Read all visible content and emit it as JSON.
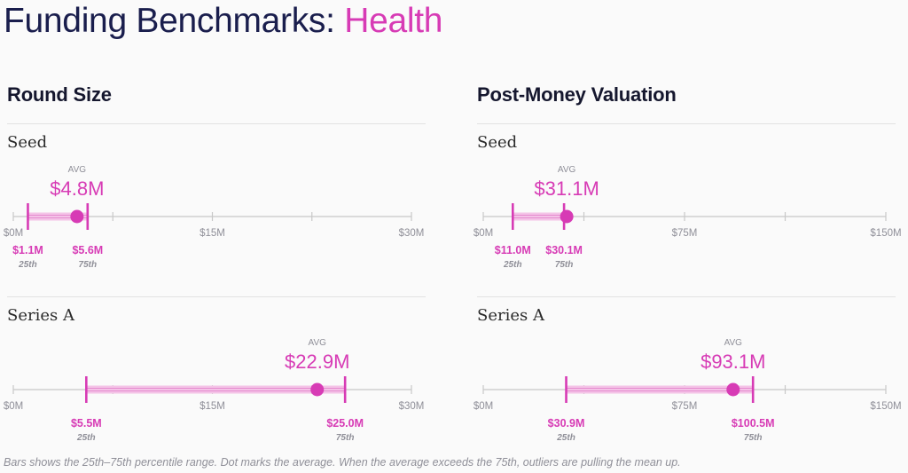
{
  "header": {
    "title_main": "Funding Benchmarks:",
    "title_accent": "Health"
  },
  "columns": [
    {
      "heading": "Round Size"
    },
    {
      "heading": "Post-Money Valuation"
    }
  ],
  "chart_data": [
    {
      "type": "range-dot",
      "metric": "Round Size",
      "stage": "Seed",
      "xlim": [
        0,
        30
      ],
      "ticks": [
        0,
        15,
        30
      ],
      "tick_labels": [
        "$0M",
        "$15M",
        "$30M"
      ],
      "p25": 1.1,
      "p75": 5.6,
      "avg": 4.8,
      "p25_label": "$1.1M",
      "p75_label": "$5.6M",
      "avg_label": "$4.8M",
      "avg_caption": "AVG",
      "p25_caption": "25th",
      "p75_caption": "75th"
    },
    {
      "type": "range-dot",
      "metric": "Round Size",
      "stage": "Series A",
      "xlim": [
        0,
        30
      ],
      "ticks": [
        0,
        15,
        30
      ],
      "tick_labels": [
        "$0M",
        "$15M",
        "$30M"
      ],
      "p25": 5.5,
      "p75": 25.0,
      "avg": 22.9,
      "p25_label": "$5.5M",
      "p75_label": "$25.0M",
      "avg_label": "$22.9M",
      "avg_caption": "AVG",
      "p25_caption": "25th",
      "p75_caption": "75th"
    },
    {
      "type": "range-dot",
      "metric": "Post-Money Valuation",
      "stage": "Seed",
      "xlim": [
        0,
        150
      ],
      "ticks": [
        0,
        75,
        150
      ],
      "tick_labels": [
        "$0M",
        "$75M",
        "$150M"
      ],
      "p25": 11.0,
      "p75": 30.1,
      "avg": 31.1,
      "p25_label": "$11.0M",
      "p75_label": "$30.1M",
      "avg_label": "$31.1M",
      "avg_caption": "AVG",
      "p25_caption": "25th",
      "p75_caption": "75th"
    },
    {
      "type": "range-dot",
      "metric": "Post-Money Valuation",
      "stage": "Series A",
      "xlim": [
        0,
        150
      ],
      "ticks": [
        0,
        75,
        150
      ],
      "tick_labels": [
        "$0M",
        "$75M",
        "$150M"
      ],
      "p25": 30.9,
      "p75": 100.5,
      "avg": 93.1,
      "p25_label": "$30.9M",
      "p75_label": "$100.5M",
      "avg_label": "$93.1M",
      "avg_caption": "AVG",
      "p25_caption": "25th",
      "p75_caption": "75th"
    }
  ],
  "footnote": "Bars shows the 25th–75th percentile range. Dot marks the average. When the average exceeds the 75th, outliers are pulling the mean up.",
  "colors": {
    "accent": "#d73bb5",
    "navy": "#1a1e4d",
    "axis": "#c8c8c8",
    "muted": "#8f8f98"
  }
}
